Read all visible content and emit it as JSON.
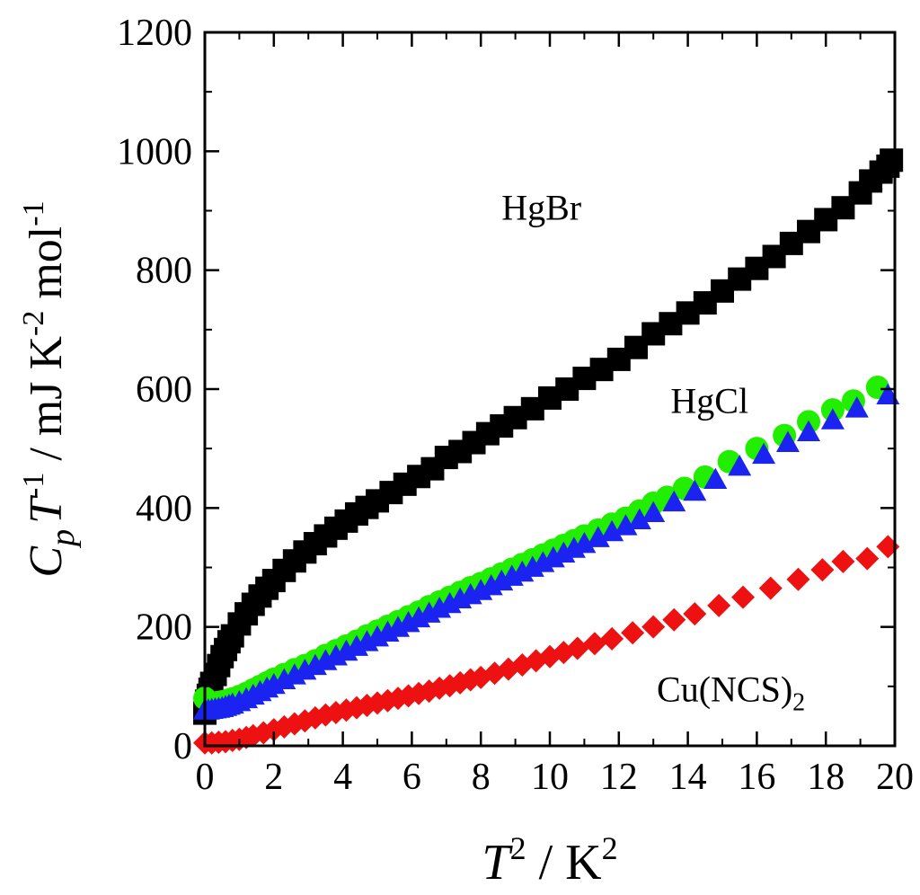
{
  "chart_data": {
    "type": "scatter",
    "title": "",
    "xlabel": {
      "var": "T",
      "var_sup": "2",
      "sep": " / ",
      "unit": "K",
      "unit_sup": "2"
    },
    "ylabel": {
      "c": "C",
      "c_sub": "p",
      "t": "T",
      "t_sup": "-1",
      "unit_a": " / mJ K",
      "unit_a_sup": "-2",
      "unit_b": " mol",
      "unit_b_sup": "-1"
    },
    "xlim": [
      0,
      20
    ],
    "ylim": [
      0,
      1200
    ],
    "xticks": [
      0,
      2,
      4,
      6,
      8,
      10,
      12,
      14,
      16,
      18,
      20
    ],
    "yticks": [
      0,
      200,
      400,
      600,
      800,
      1000,
      1200
    ],
    "grid": false,
    "series": [
      {
        "name": "HgBr",
        "label": "HgBr",
        "marker": "square",
        "color": "#000000",
        "x": [
          0.0,
          0.02,
          0.05,
          0.1,
          0.15,
          0.2,
          0.3,
          0.4,
          0.5,
          0.6,
          0.7,
          0.8,
          1.0,
          1.2,
          1.4,
          1.6,
          1.8,
          2.0,
          2.3,
          2.6,
          2.9,
          3.2,
          3.5,
          3.8,
          4.1,
          4.4,
          4.7,
          5.0,
          5.4,
          5.8,
          6.2,
          6.6,
          7.0,
          7.4,
          7.8,
          8.2,
          8.6,
          9.0,
          9.5,
          10.0,
          10.5,
          11.0,
          11.5,
          12.0,
          12.5,
          13.0,
          13.5,
          14.0,
          14.5,
          15.0,
          15.5,
          16.0,
          16.5,
          17.0,
          17.5,
          18.0,
          18.5,
          19.0,
          19.3,
          19.6,
          19.8,
          19.9
        ],
        "y": [
          55,
          65,
          75,
          85,
          95,
          105,
          120,
          135,
          150,
          162,
          175,
          185,
          205,
          222,
          238,
          252,
          265,
          278,
          295,
          311,
          326,
          340,
          353,
          366,
          378,
          390,
          401,
          412,
          426,
          440,
          453,
          466,
          485,
          495,
          510,
          525,
          538,
          552,
          567,
          585,
          600,
          618,
          633,
          650,
          670,
          693,
          710,
          728,
          745,
          765,
          785,
          803,
          823,
          845,
          865,
          885,
          905,
          930,
          950,
          965,
          975,
          985
        ]
      },
      {
        "name": "HgCl (green)",
        "label": "HgCl",
        "marker": "circle",
        "color": "#22ee00",
        "x": [
          0.0,
          0.1,
          0.2,
          0.3,
          0.4,
          0.5,
          0.6,
          0.7,
          0.8,
          1.0,
          1.2,
          1.4,
          1.6,
          1.8,
          2.0,
          2.3,
          2.6,
          2.9,
          3.2,
          3.5,
          3.8,
          4.1,
          4.4,
          4.7,
          5.0,
          5.3,
          5.6,
          5.9,
          6.2,
          6.5,
          6.8,
          7.1,
          7.4,
          7.7,
          8.0,
          8.3,
          8.6,
          8.9,
          9.2,
          9.5,
          9.8,
          10.1,
          10.4,
          10.7,
          11.0,
          11.4,
          11.8,
          12.2,
          12.6,
          13.0,
          13.4,
          13.9,
          14.5,
          15.2,
          16.0,
          16.8,
          17.5,
          18.2,
          18.8,
          19.5
        ],
        "y": [
          80,
          75,
          72,
          72,
          73,
          74,
          75,
          77,
          79,
          83,
          88,
          94,
          100,
          106,
          112,
          120,
          128,
          135,
          143,
          152,
          160,
          168,
          176,
          185,
          193,
          201,
          209,
          217,
          225,
          234,
          242,
          250,
          258,
          266,
          273,
          281,
          289,
          297,
          305,
          313,
          321,
          329,
          337,
          345,
          353,
          363,
          373,
          383,
          395,
          408,
          418,
          433,
          452,
          478,
          500,
          522,
          545,
          565,
          580,
          603
        ]
      },
      {
        "name": "HgCl (blue)",
        "label": "",
        "marker": "triangle",
        "color": "#1a23f0",
        "x": [
          0.0,
          0.1,
          0.2,
          0.3,
          0.4,
          0.5,
          0.6,
          0.7,
          0.8,
          1.0,
          1.2,
          1.4,
          1.6,
          1.8,
          2.0,
          2.3,
          2.6,
          2.9,
          3.2,
          3.5,
          3.8,
          4.1,
          4.4,
          4.7,
          5.0,
          5.3,
          5.6,
          5.9,
          6.2,
          6.5,
          6.8,
          7.1,
          7.4,
          7.7,
          8.0,
          8.3,
          8.6,
          8.9,
          9.2,
          9.5,
          9.8,
          10.1,
          10.4,
          10.7,
          11.0,
          11.4,
          11.8,
          12.2,
          12.6,
          13.0,
          13.6,
          14.2,
          14.8,
          15.5,
          16.2,
          16.9,
          17.5,
          18.2,
          18.9,
          19.8
        ],
        "y": [
          60,
          60,
          61,
          62,
          63,
          64,
          66,
          68,
          70,
          74,
          79,
          85,
          91,
          97,
          103,
          111,
          119,
          127,
          135,
          143,
          151,
          159,
          167,
          175,
          183,
          191,
          199,
          207,
          215,
          223,
          231,
          239,
          247,
          254,
          261,
          269,
          277,
          285,
          292,
          300,
          308,
          316,
          324,
          332,
          340,
          350,
          360,
          370,
          380,
          392,
          410,
          428,
          448,
          470,
          490,
          510,
          528,
          548,
          568,
          590
        ]
      },
      {
        "name": "Cu(NCS)2",
        "label": "Cu(NCS)",
        "label_sub": "2",
        "marker": "diamond",
        "color": "#ee1111",
        "x": [
          0.0,
          0.2,
          0.4,
          0.6,
          0.8,
          1.0,
          1.2,
          1.4,
          1.7,
          2.0,
          2.3,
          2.6,
          2.9,
          3.2,
          3.5,
          3.8,
          4.1,
          4.4,
          4.7,
          5.0,
          5.3,
          5.6,
          5.9,
          6.2,
          6.5,
          6.8,
          7.1,
          7.4,
          7.7,
          8.0,
          8.4,
          8.8,
          9.2,
          9.6,
          10.0,
          10.4,
          10.8,
          11.3,
          11.8,
          12.4,
          13.0,
          13.6,
          14.2,
          14.9,
          15.6,
          16.4,
          17.2,
          17.9,
          18.5,
          19.2,
          19.8
        ],
        "y": [
          5,
          5,
          6,
          7,
          9,
          11,
          14,
          17,
          22,
          27,
          32,
          37,
          42,
          47,
          52,
          56,
          60,
          64,
          68,
          72,
          76,
          80,
          84,
          88,
          92,
          97,
          101,
          106,
          111,
          115,
          122,
          129,
          136,
          143,
          150,
          157,
          164,
          172,
          180,
          190,
          200,
          212,
          222,
          236,
          250,
          265,
          280,
          296,
          310,
          315,
          335
        ]
      }
    ]
  }
}
